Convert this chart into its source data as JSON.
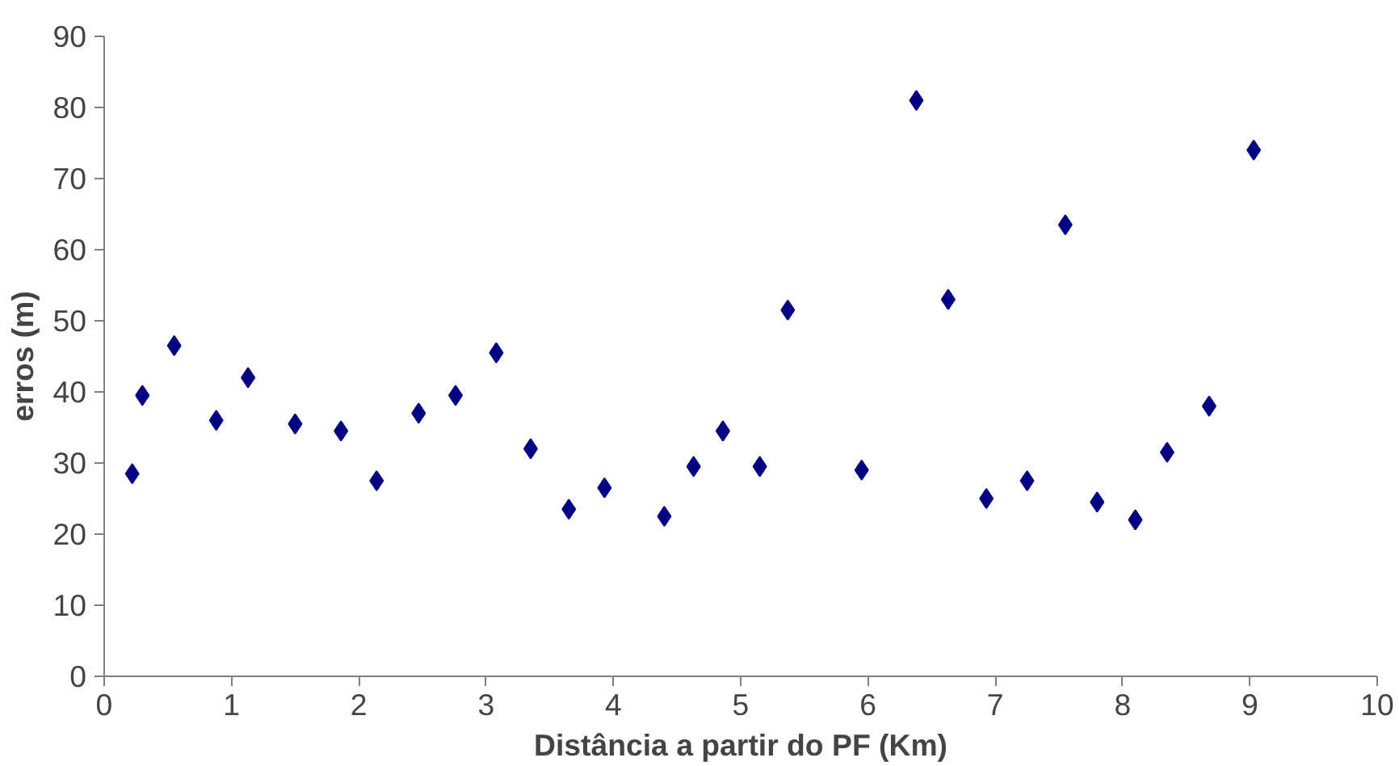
{
  "chart_data": {
    "type": "scatter",
    "xlabel": "Distância a partir do PF (Km)",
    "ylabel": "erros (m)",
    "x": [
      0.22,
      0.3,
      0.55,
      0.88,
      1.13,
      1.5,
      1.86,
      2.14,
      2.47,
      2.76,
      3.08,
      3.35,
      3.65,
      3.93,
      4.4,
      4.63,
      4.86,
      5.15,
      5.37,
      5.95,
      6.38,
      6.63,
      6.93,
      7.25,
      7.55,
      7.8,
      8.1,
      8.35,
      8.68,
      9.03
    ],
    "series": [
      {
        "color": "#000080",
        "values": [
          28.5,
          39.5,
          46.5,
          36,
          42,
          35.5,
          34.5,
          27.5,
          37,
          39.5,
          45.5,
          32,
          23.5,
          26.5,
          22.5,
          29.5,
          34.5,
          29.5,
          51.5,
          29,
          81,
          53,
          25,
          27.5,
          63.5,
          24.5,
          22,
          31.5,
          38,
          74
        ]
      }
    ],
    "xlim": [
      0,
      10
    ],
    "ylim": [
      0,
      90
    ],
    "xticks": [
      0,
      1,
      2,
      3,
      4,
      5,
      6,
      7,
      8,
      9,
      10
    ],
    "yticks": [
      0,
      10,
      20,
      30,
      40,
      50,
      60,
      70,
      80,
      90
    ],
    "grid": false,
    "marker": "diamond"
  }
}
